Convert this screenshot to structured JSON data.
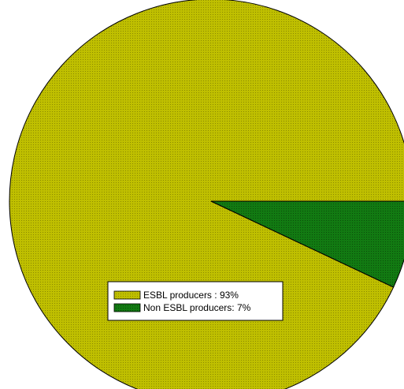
{
  "chart_data": {
    "type": "pie",
    "title": "",
    "slices": [
      {
        "label": "ESBL producers",
        "legend_text": "ESBL producers : 93%",
        "value": 93,
        "color": "#bfbf00"
      },
      {
        "label": "Non ESBL producers",
        "legend_text": "Non ESBL producers: 7%",
        "value": 7,
        "color": "#127a12"
      }
    ],
    "legend_position": "bottom-left",
    "slice_pattern": "dotted"
  }
}
